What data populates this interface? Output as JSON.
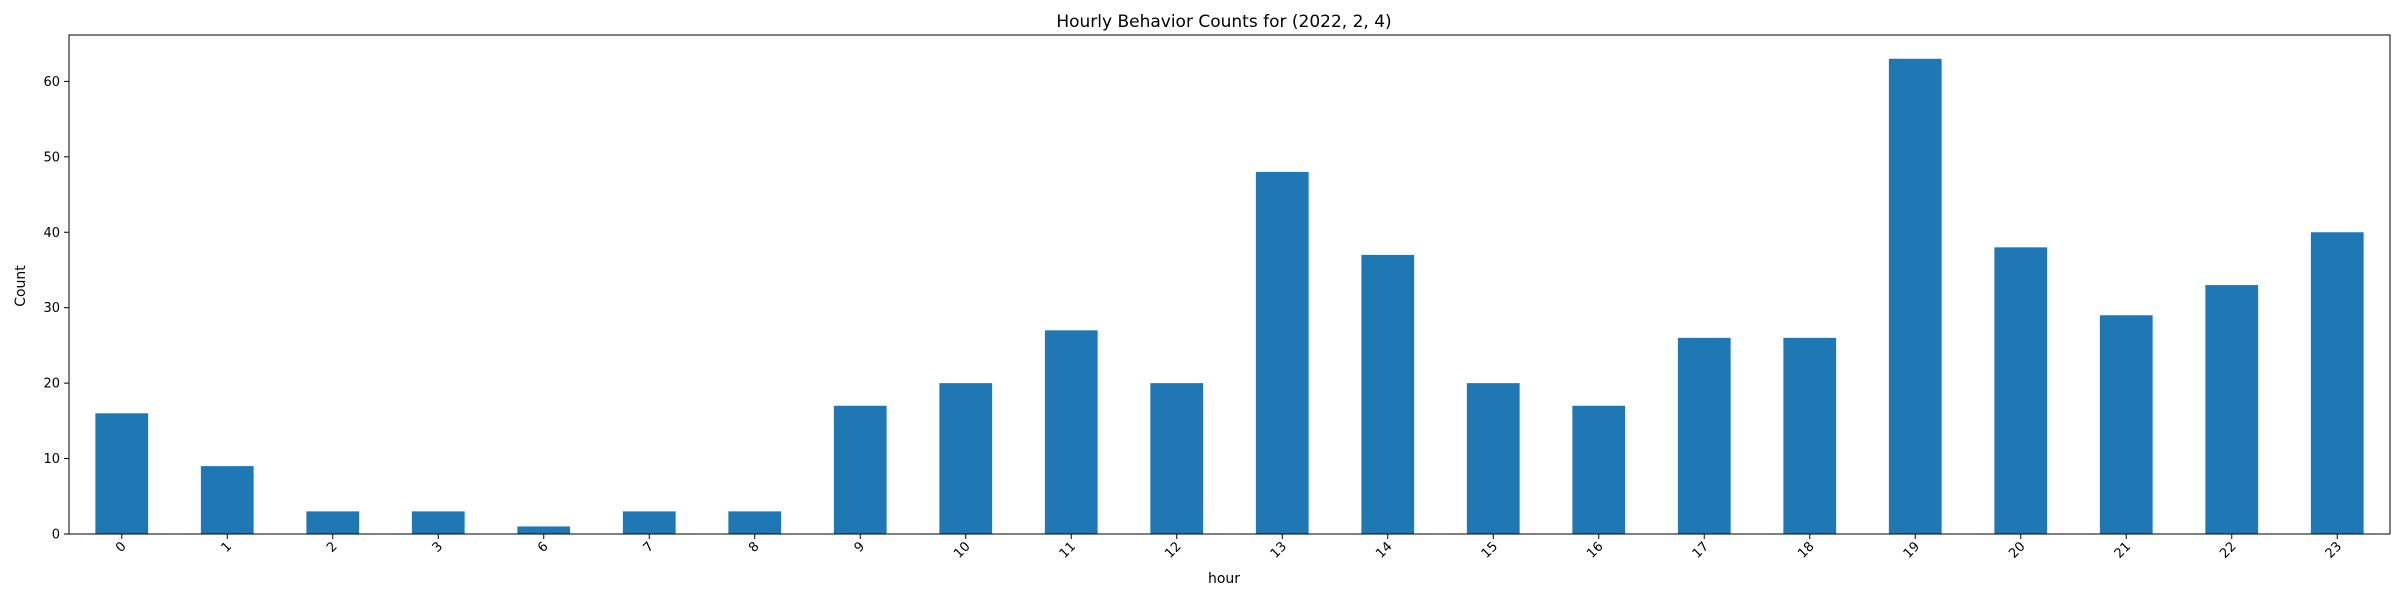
{
  "chart_data": {
    "type": "bar",
    "title": "Hourly Behavior Counts for (2022, 2, 4)",
    "xlabel": "hour",
    "ylabel": "Count",
    "categories": [
      "0",
      "1",
      "2",
      "3",
      "6",
      "7",
      "8",
      "9",
      "10",
      "11",
      "12",
      "13",
      "14",
      "15",
      "16",
      "17",
      "18",
      "19",
      "20",
      "21",
      "22",
      "23"
    ],
    "values": [
      16,
      9,
      3,
      3,
      1,
      3,
      3,
      17,
      20,
      27,
      20,
      48,
      37,
      20,
      17,
      26,
      26,
      63,
      38,
      29,
      33,
      40
    ],
    "ylim": [
      0,
      66.15
    ],
    "yticks": [
      0,
      10,
      20,
      30,
      40,
      50,
      60
    ],
    "bar_color": "#1f77b4",
    "grid": false,
    "legend": false
  }
}
